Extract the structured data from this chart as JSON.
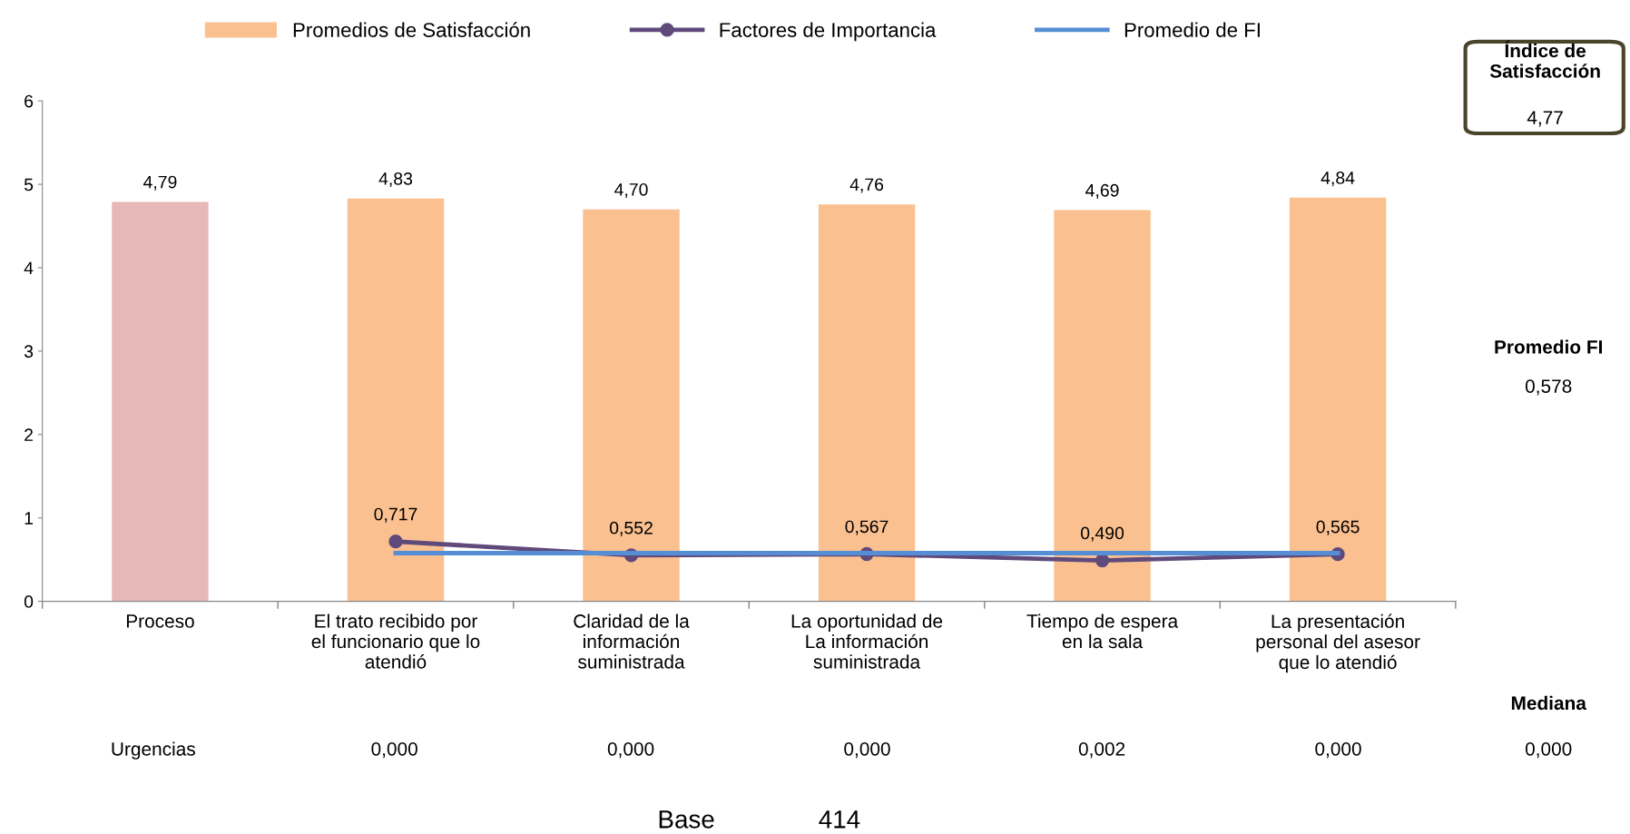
{
  "chart_data": {
    "type": "bar",
    "categories": [
      "Proceso",
      "El trato recibido por\nel funcionario que lo\natendió",
      "Claridad de la\ninformación\nsuministrada",
      "La oportunidad de\nLa información\nsuministrada",
      "Tiempo de espera\nen la sala",
      "La presentación\npersonal del asesor\nque lo atendió"
    ],
    "series": [
      {
        "name": "Promedios de Satisfacción",
        "colors": [
          "#e6b9b8",
          "#fac090",
          "#fac090",
          "#fac090",
          "#fac090",
          "#fac090"
        ],
        "color": "#fac090",
        "values": [
          4.79,
          4.83,
          4.7,
          4.76,
          4.69,
          4.84
        ],
        "value_labels": [
          "4,79",
          "4,83",
          "4,70",
          "4,76",
          "4,69",
          "4,84"
        ]
      },
      {
        "name": "Factores de Importancia",
        "type": "line",
        "color": "#604a7b",
        "marker": "circle",
        "values": [
          null,
          0.717,
          0.552,
          0.567,
          0.49,
          0.565
        ],
        "value_labels": [
          null,
          "0,717",
          "0,552",
          "0,567",
          "0,490",
          "0,565"
        ]
      },
      {
        "name": "Promedio de FI",
        "type": "line",
        "color": "#558ed5",
        "values": [
          null,
          0.578,
          0.578,
          0.578,
          0.578,
          0.578
        ]
      }
    ],
    "ylim": [
      0,
      6
    ],
    "yticks": [
      0,
      1,
      2,
      3,
      4,
      5,
      6
    ],
    "grid": false,
    "legend": "top",
    "annotations": [
      "Índice de Satisfacción",
      "4,77",
      "Promedio FI",
      "0,578",
      "Mediana",
      "Urgencias",
      "0,000",
      "0,000",
      "0,000",
      "0,002",
      "0,000",
      "0,000",
      "Base",
      "414"
    ]
  }
}
